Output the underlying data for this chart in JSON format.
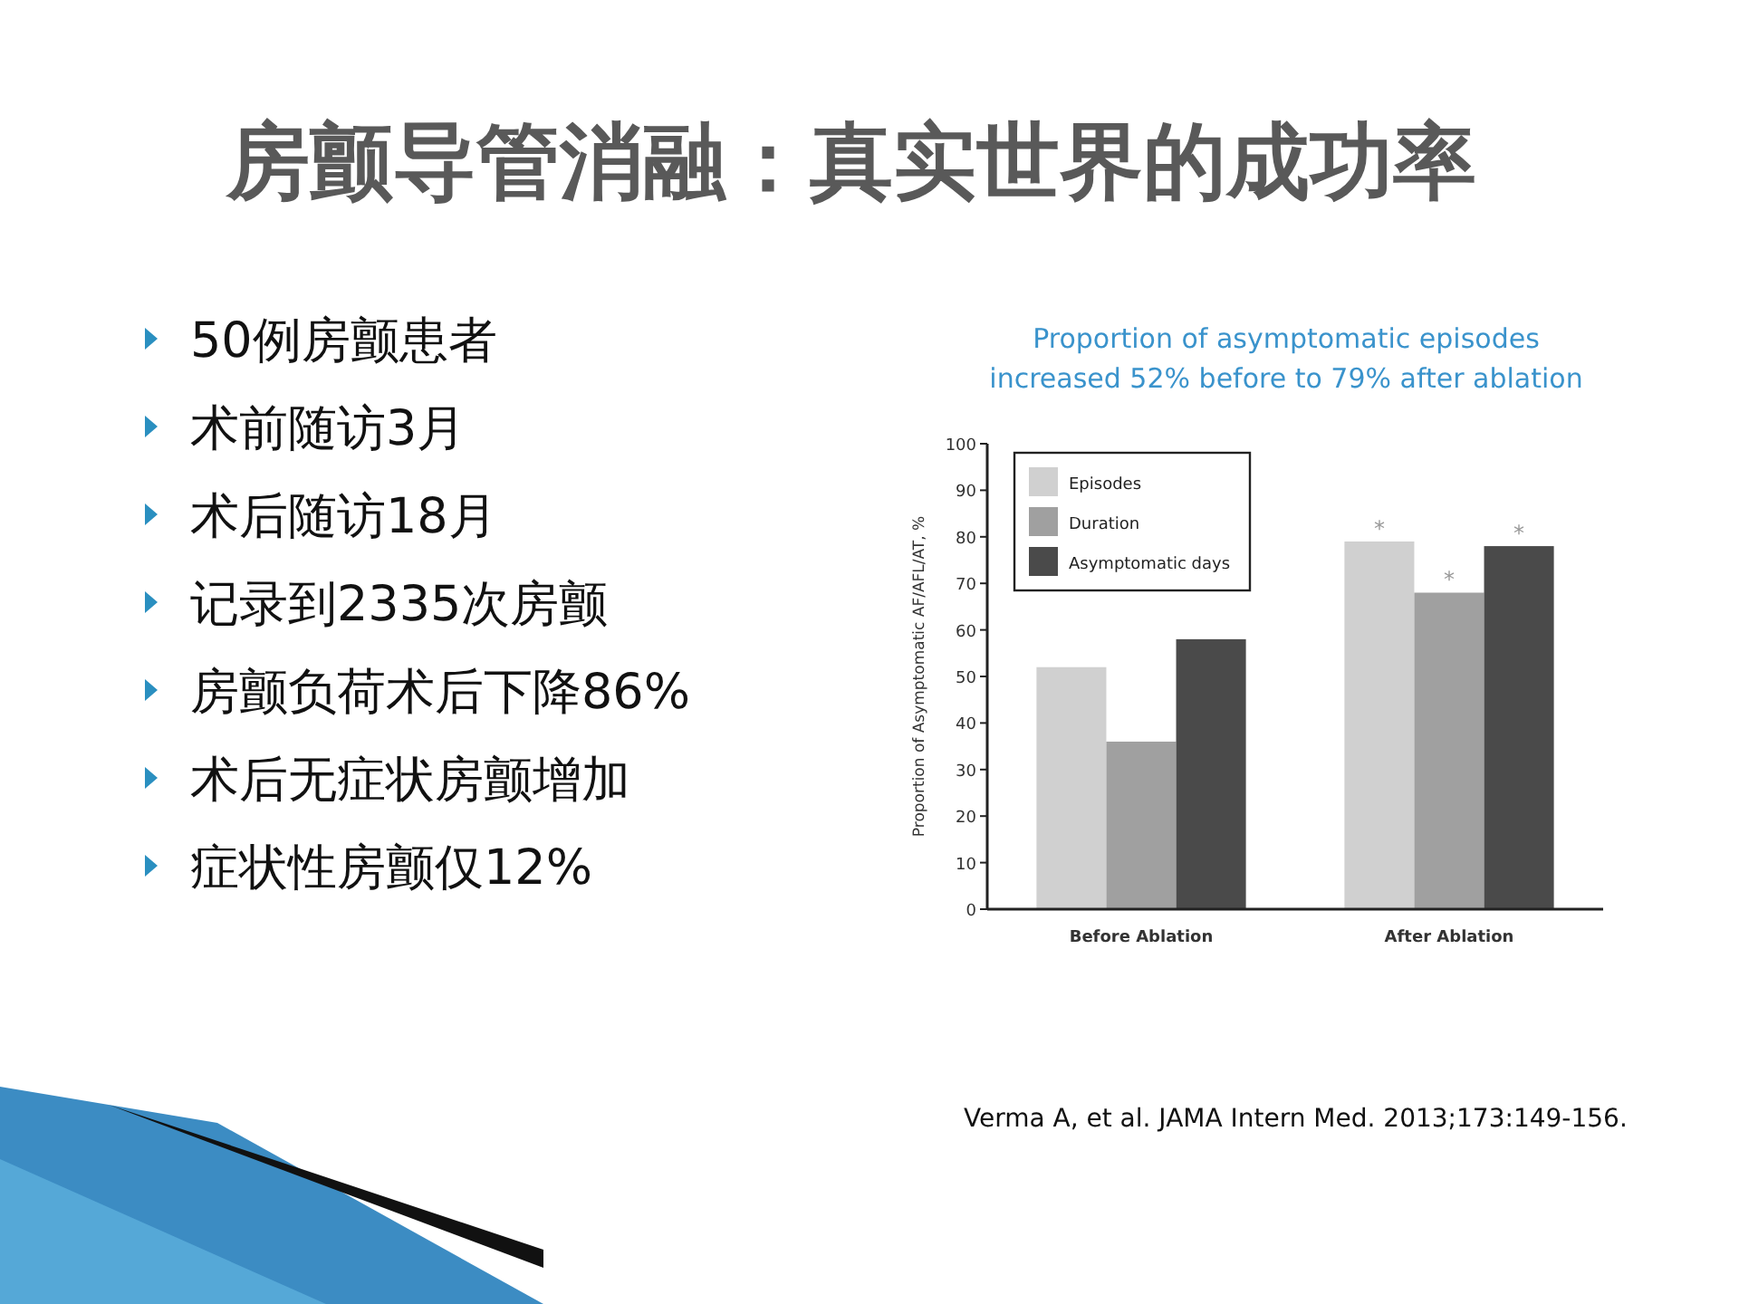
{
  "chart_data": {
    "type": "bar",
    "title": "房颤导管消融：真实世界的成功率",
    "subtitle": "Proportion of asymptomatic episodes increased 52% before to 79% after ablation",
    "ylabel": "Proportion of Asymptomatic AF/AFL/AT, %",
    "categories": [
      "Before Ablation",
      "After Ablation"
    ],
    "series": [
      {
        "name": "Episodes",
        "color": "#d0d0d0",
        "values": [
          52,
          79
        ]
      },
      {
        "name": "Duration",
        "color": "#a0a0a0",
        "values": [
          36,
          68
        ]
      },
      {
        "name": "Asymptomatic days",
        "color": "#4a4a4a",
        "values": [
          58,
          78
        ]
      }
    ],
    "ylim": [
      0,
      100
    ],
    "yticks": [
      0,
      10,
      20,
      30,
      40,
      50,
      60,
      70,
      80,
      90,
      100
    ],
    "legend": "top left",
    "grid": false,
    "annotations": [
      "50例房颤患者",
      "术前随访3月",
      "术后随访18月",
      "记录到2335次房颤",
      "房颤负荷术后下降86%",
      "术后无症状房颤增加",
      "症状性房颤仅12%",
      "Verma A, et al. JAMA Intern Med. 2013;173:149-156.",
      "*",
      "*",
      "*"
    ]
  }
}
